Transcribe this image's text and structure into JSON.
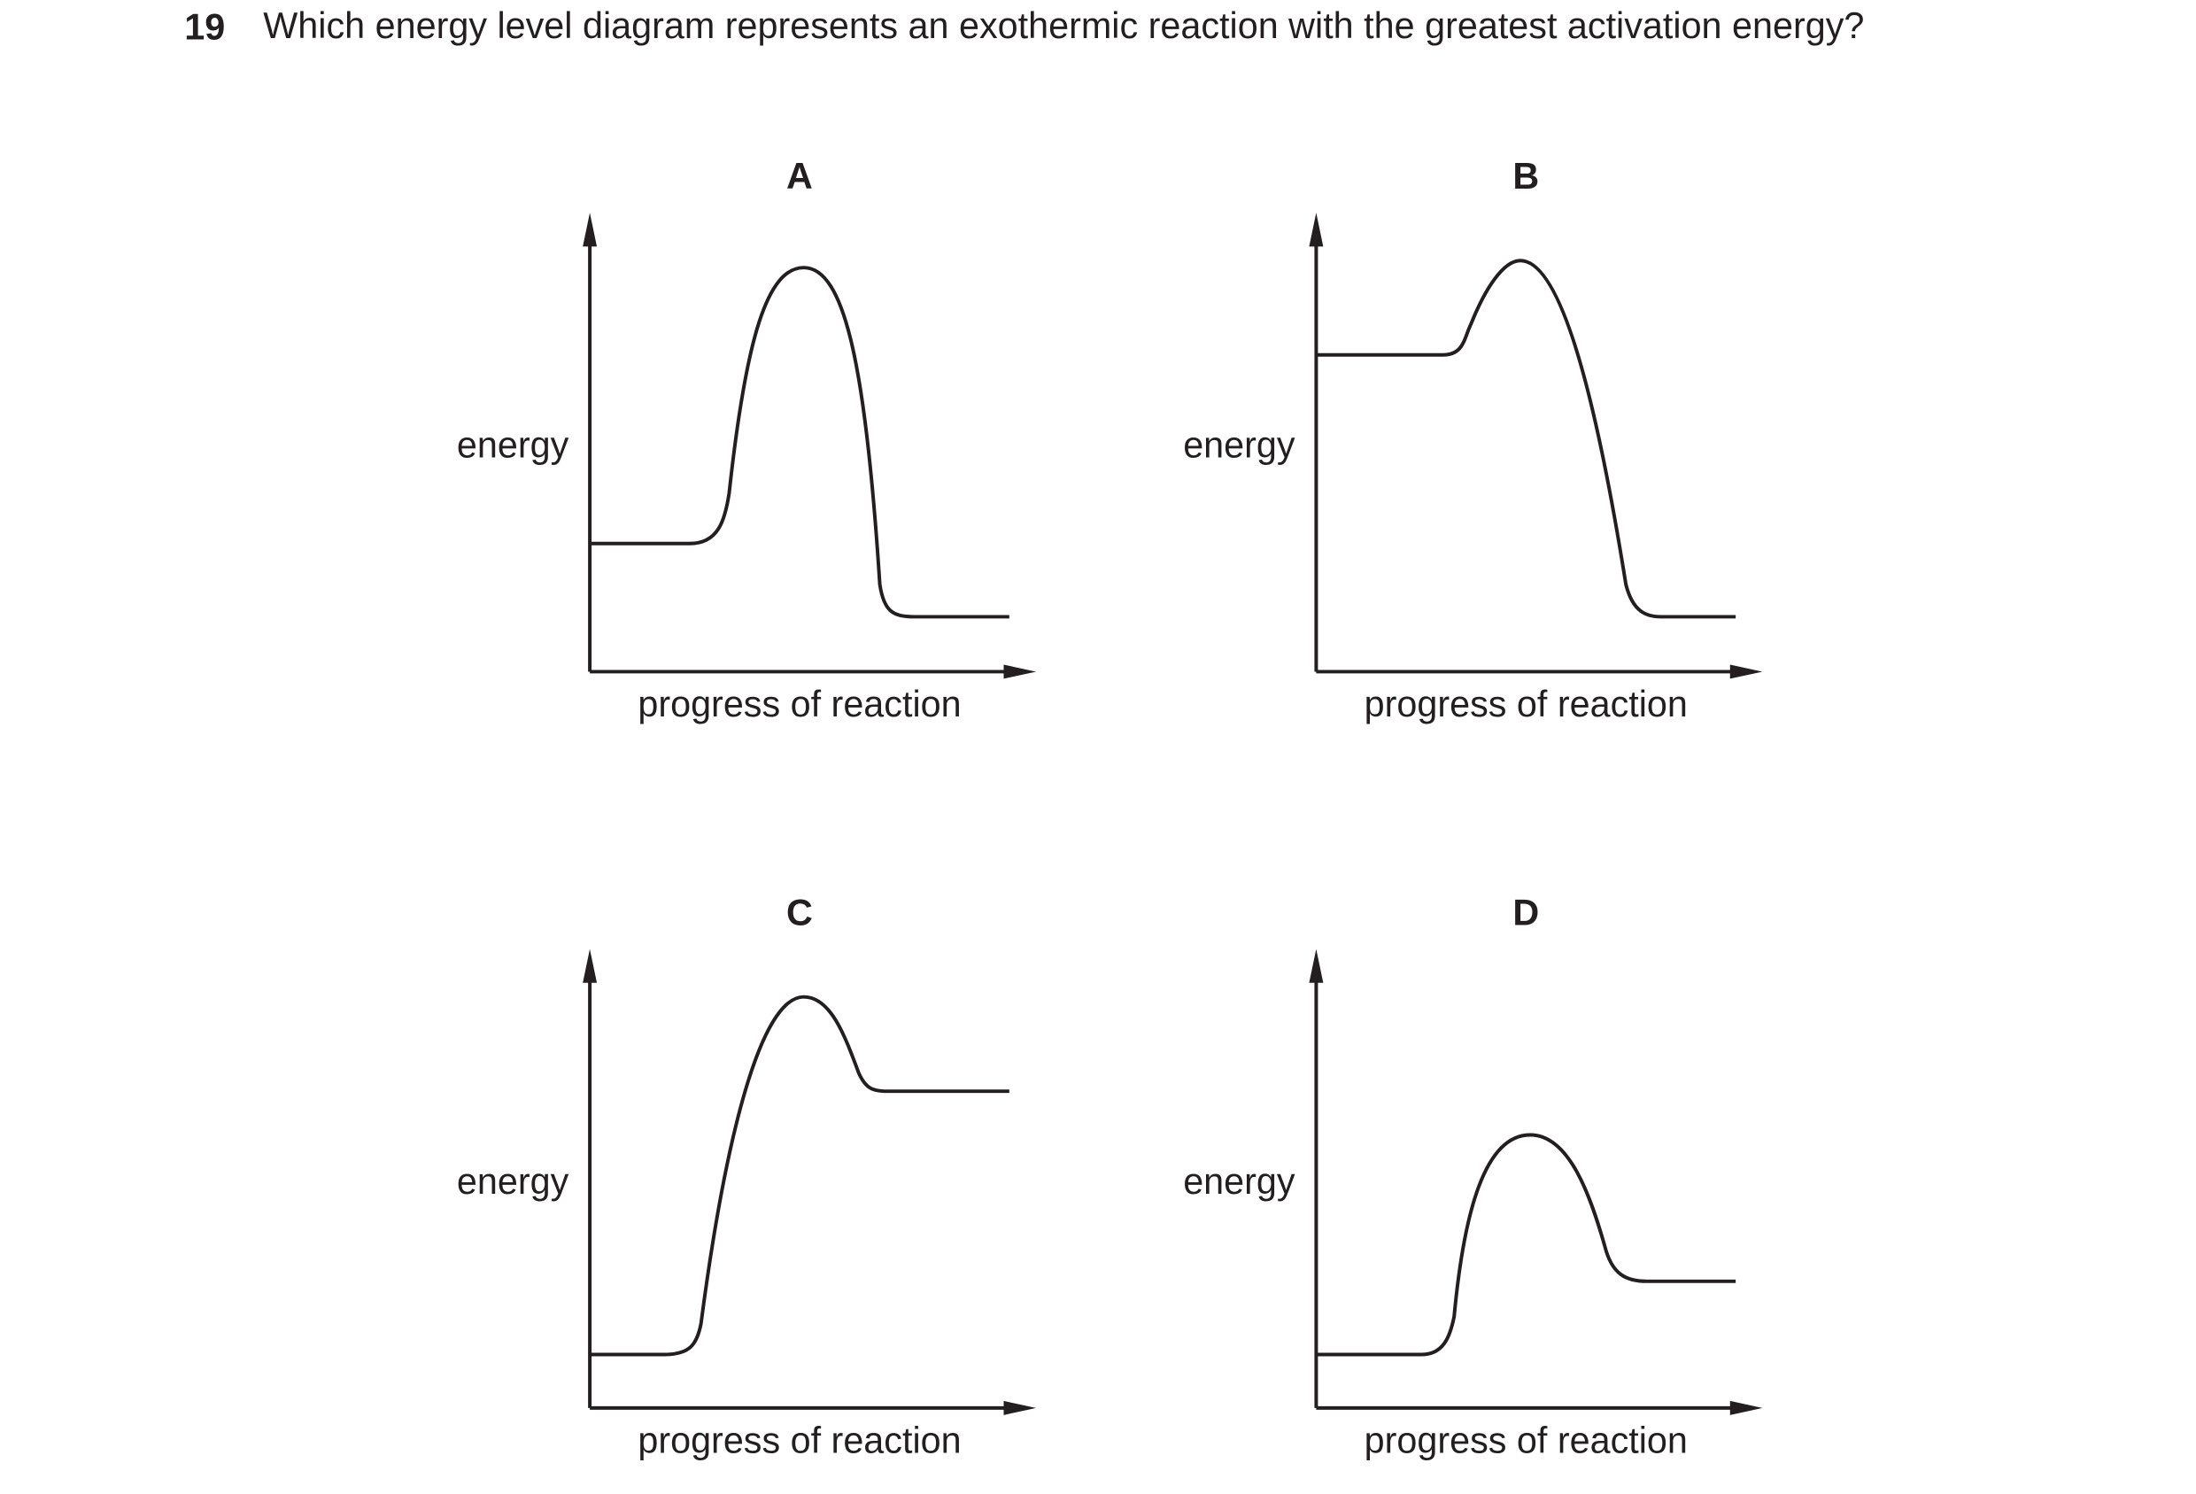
{
  "question": {
    "number": "19",
    "text": "Which energy level diagram represents an exothermic reaction with the greatest activation energy?"
  },
  "diagrams": [
    {
      "label": "A",
      "y_axis_label": "energy",
      "x_axis_label": "progress of reaction"
    },
    {
      "label": "B",
      "y_axis_label": "energy",
      "x_axis_label": "progress of reaction"
    },
    {
      "label": "C",
      "y_axis_label": "energy",
      "x_axis_label": "progress of reaction"
    },
    {
      "label": "D",
      "y_axis_label": "energy",
      "x_axis_label": "progress of reaction"
    }
  ]
}
